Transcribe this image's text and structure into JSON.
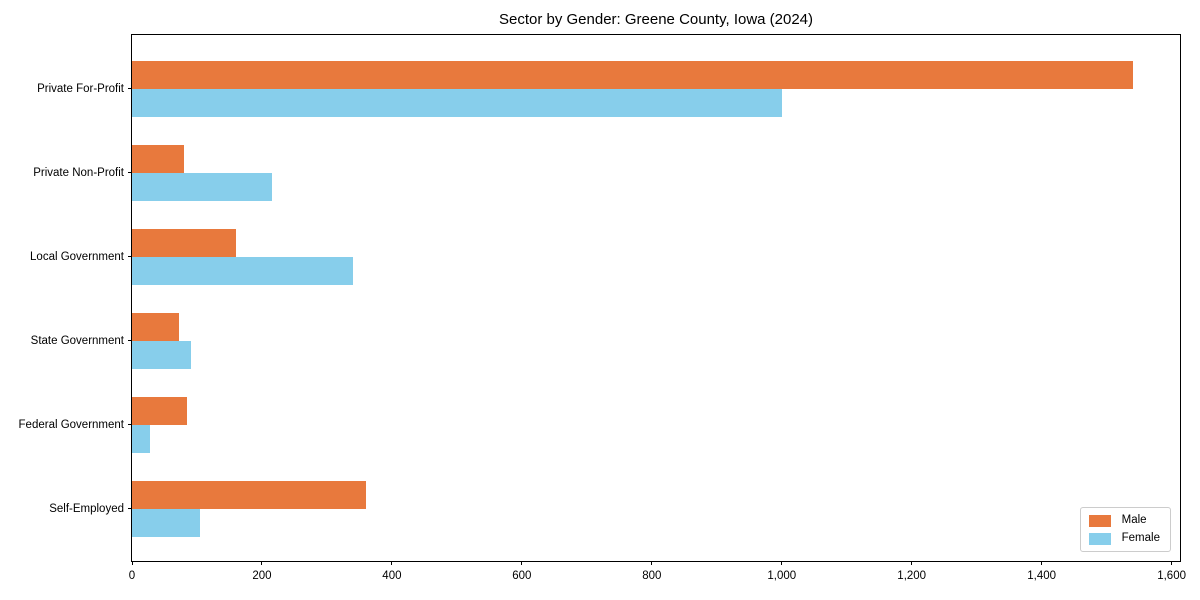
{
  "chart_data": {
    "type": "bar",
    "orientation": "horizontal",
    "title": "Sector by Gender: Greene County, Iowa (2024)",
    "categories": [
      "Private For-Profit",
      "Private Non-Profit",
      "Local Government",
      "State Government",
      "Federal Government",
      "Self-Employed"
    ],
    "series": [
      {
        "name": "Male",
        "color": "#e8793d",
        "values": [
          1540,
          80,
          160,
          72,
          85,
          360
        ]
      },
      {
        "name": "Female",
        "color": "#87ceeb",
        "values": [
          1000,
          215,
          340,
          90,
          28,
          105
        ]
      }
    ],
    "xlabel": "",
    "ylabel": "",
    "xlim": [
      0,
      1616
    ],
    "xticks": [
      0,
      200,
      400,
      600,
      800,
      1000,
      1200,
      1400,
      1600
    ],
    "xtick_labels": [
      "0",
      "200",
      "400",
      "600",
      "800",
      "1,000",
      "1,200",
      "1,400",
      "1,600"
    ],
    "grid": false,
    "legend": {
      "position": "lower right"
    },
    "colors": {
      "spine": "#000000",
      "background": "#ffffff",
      "text": "#000000"
    }
  }
}
